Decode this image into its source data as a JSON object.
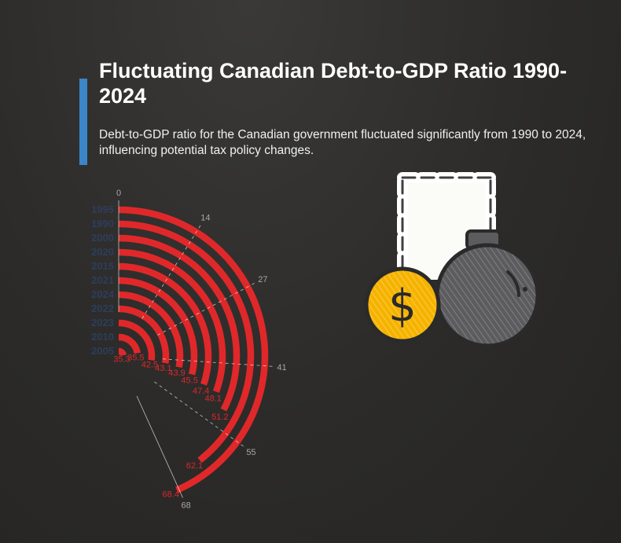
{
  "header": {
    "title": "Fluctuating Canadian Debt-to-GDP Ratio 1990-2024",
    "subtitle": "Debt-to-GDP ratio for the Canadian government fluctuated significantly from 1990 to 2024, influencing potential tax policy changes."
  },
  "colors": {
    "bar": "#e0282a",
    "accent": "#3b86c8",
    "category_label": "#2d3e5c",
    "tick": "#a7a7a7",
    "background": "#2c2b29"
  },
  "icon": {
    "name": "money-bag-coin-icon"
  },
  "chart_data": {
    "type": "radial-bar",
    "categories": [
      "1995",
      "1990",
      "2000",
      "2020",
      "2015",
      "2021",
      "2024",
      "2022",
      "2023",
      "2010",
      "2005"
    ],
    "values": [
      68.4,
      62.1,
      51.2,
      48.1,
      47.4,
      45.5,
      43.9,
      43.1,
      42.5,
      35.5,
      35.3
    ],
    "value_labels": [
      "68.4",
      "62.1",
      "51.2",
      "48.1",
      "47.4",
      "45.5",
      "43.9",
      "43.1",
      "42.5",
      "35.5",
      "35.3"
    ],
    "axis_ticks": [
      0,
      14,
      27,
      41,
      55,
      68
    ],
    "axis_tick_labels": [
      "0",
      "14",
      "27",
      "41",
      "55",
      "68"
    ],
    "range": [
      0,
      68.4
    ],
    "grid": true
  }
}
